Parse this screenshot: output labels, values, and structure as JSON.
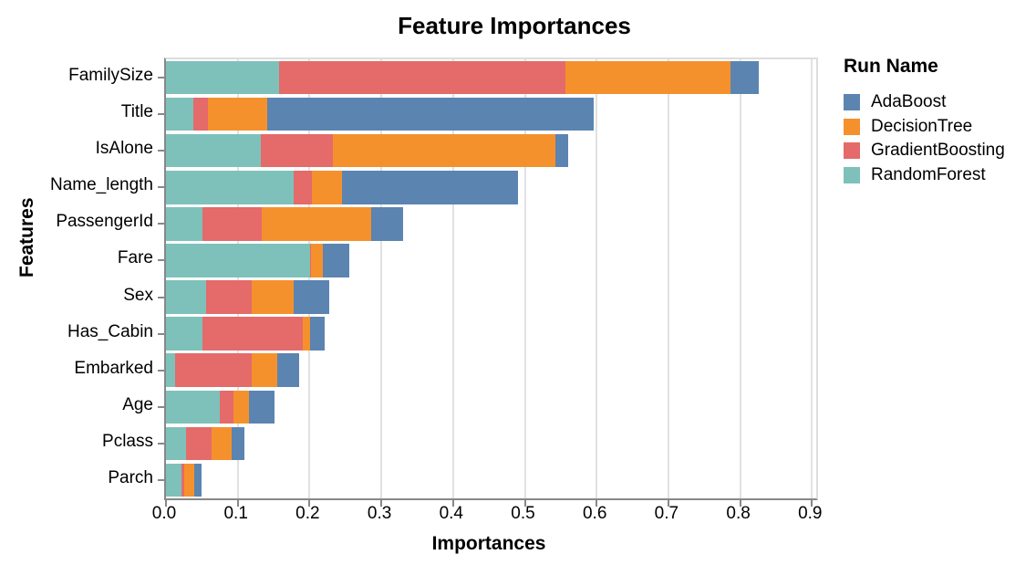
{
  "title": "Feature Importances",
  "colors": {
    "AdaBoost": "#5b84b1",
    "DecisionTree": "#f5912d",
    "GradientBoosting": "#e56a6a",
    "RandomForest": "#7ec1ba",
    "gridline": "#e1e1e1",
    "axis": "#888888",
    "text": "#000000"
  },
  "chart_data": {
    "type": "bar",
    "orientation": "horizontal",
    "stacked": true,
    "title": "Feature Importances",
    "xlabel": "Importances",
    "ylabel": "Features",
    "xlim": [
      0.0,
      0.9
    ],
    "x_tick_labels": [
      "0.0",
      "0.1",
      "0.2",
      "0.3",
      "0.4",
      "0.5",
      "0.6",
      "0.7",
      "0.8",
      "0.9"
    ],
    "grid": true,
    "categories": [
      "FamilySize",
      "Title",
      "IsAlone",
      "Name_length",
      "PassengerId",
      "Fare",
      "Sex",
      "Has_Cabin",
      "Embarked",
      "Age",
      "Pclass",
      "Parch"
    ],
    "stack_order_note": "series listed in stacking order from axis outward",
    "series": [
      {
        "name": "RandomForest",
        "color": "#7ec1ba",
        "values": [
          0.157,
          0.038,
          0.132,
          0.178,
          0.051,
          0.201,
          0.056,
          0.051,
          0.013,
          0.075,
          0.028,
          0.022
        ]
      },
      {
        "name": "GradientBoosting",
        "color": "#e56a6a",
        "values": [
          0.4,
          0.02,
          0.101,
          0.025,
          0.082,
          0.001,
          0.063,
          0.14,
          0.107,
          0.019,
          0.036,
          0.003
        ]
      },
      {
        "name": "DecisionTree",
        "color": "#f5912d",
        "values": [
          0.229,
          0.083,
          0.309,
          0.042,
          0.153,
          0.017,
          0.059,
          0.01,
          0.035,
          0.022,
          0.028,
          0.015
        ]
      },
      {
        "name": "AdaBoost",
        "color": "#5b84b1",
        "values": [
          0.04,
          0.455,
          0.018,
          0.245,
          0.045,
          0.036,
          0.049,
          0.02,
          0.031,
          0.035,
          0.017,
          0.01
        ]
      }
    ],
    "legend": {
      "title": "Run Name",
      "position": "right",
      "entries": [
        {
          "label": "AdaBoost",
          "color": "#5b84b1"
        },
        {
          "label": "DecisionTree",
          "color": "#f5912d"
        },
        {
          "label": "GradientBoosting",
          "color": "#e56a6a"
        },
        {
          "label": "RandomForest",
          "color": "#7ec1ba"
        }
      ]
    }
  }
}
